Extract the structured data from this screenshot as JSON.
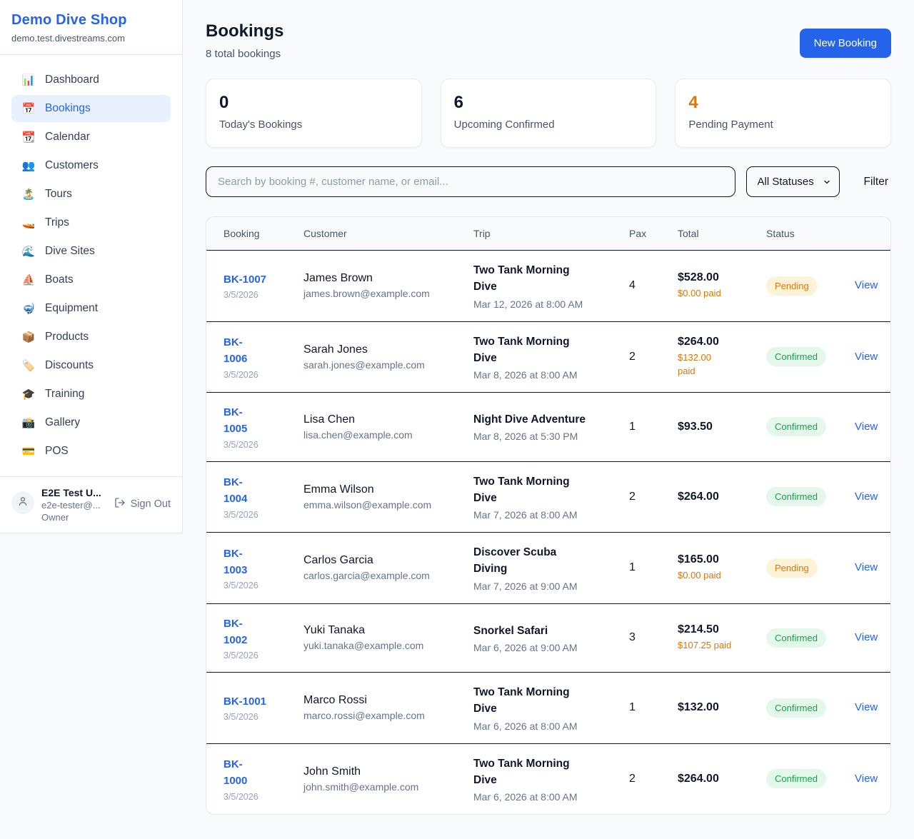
{
  "colors": {
    "accent_blue": "#2563eb",
    "orange": "#d97706",
    "green": "#16a34a",
    "dark": "#0f172a"
  },
  "sidebar": {
    "title": "Demo Dive Shop",
    "domain": "demo.test.divestreams.com",
    "items": [
      {
        "label": "Dashboard",
        "icon": "📊",
        "icon_name": "bar-chart-icon",
        "active": false
      },
      {
        "label": "Bookings",
        "icon": "📅",
        "icon_name": "calendar-icon",
        "active": true
      },
      {
        "label": "Calendar",
        "icon": "📆",
        "icon_name": "calendar-pad-icon",
        "active": false
      },
      {
        "label": "Customers",
        "icon": "👥",
        "icon_name": "people-icon",
        "active": false
      },
      {
        "label": "Tours",
        "icon": "🏝️",
        "icon_name": "island-icon",
        "active": false
      },
      {
        "label": "Trips",
        "icon": "🚤",
        "icon_name": "speedboat-icon",
        "active": false
      },
      {
        "label": "Dive Sites",
        "icon": "🌊",
        "icon_name": "wave-icon",
        "active": false
      },
      {
        "label": "Boats",
        "icon": "⛵",
        "icon_name": "sailboat-icon",
        "active": false
      },
      {
        "label": "Equipment",
        "icon": "🤿",
        "icon_name": "dive-mask-icon",
        "active": false
      },
      {
        "label": "Products",
        "icon": "📦",
        "icon_name": "package-icon",
        "active": false
      },
      {
        "label": "Discounts",
        "icon": "🏷️",
        "icon_name": "tag-icon",
        "active": false
      },
      {
        "label": "Training",
        "icon": "🎓",
        "icon_name": "grad-cap-icon",
        "active": false
      },
      {
        "label": "Gallery",
        "icon": "📸",
        "icon_name": "camera-icon",
        "active": false
      },
      {
        "label": "POS",
        "icon": "💳",
        "icon_name": "credit-card-icon",
        "active": false
      }
    ],
    "user": {
      "name": "E2E Test U...",
      "email": "e2e-tester@...",
      "role": "Owner",
      "signout_label": "Sign Out"
    }
  },
  "header": {
    "title": "Bookings",
    "subtitle": "8 total bookings",
    "new_booking_label": "New Booking"
  },
  "stats": [
    {
      "value": "0",
      "label": "Today's Bookings",
      "color": "#0f172a"
    },
    {
      "value": "6",
      "label": "Upcoming Confirmed",
      "color": "#0f172a"
    },
    {
      "value": "4",
      "label": "Pending Payment",
      "color": "#d97706"
    }
  ],
  "controls": {
    "search_placeholder": "Search by booking #, customer name, or email...",
    "status_selected": "All Statuses",
    "filter_label": "Filter"
  },
  "table": {
    "columns": [
      "Booking",
      "Customer",
      "Trip",
      "Pax",
      "Total",
      "Status",
      ""
    ],
    "view_label": "View",
    "rows": [
      {
        "id": "BK-1007",
        "id_wrap": false,
        "date": "3/5/2026",
        "customer": "James Brown",
        "email": "james.brown@example.com",
        "trip": "Two Tank Morning Dive",
        "trip_time": "Mar 12, 2026 at 8:00 AM",
        "pax": "4",
        "total": "$528.00",
        "paid": "$0.00 paid",
        "paid_wrap": false,
        "status": "Pending"
      },
      {
        "id": "BK-1006",
        "id_wrap": true,
        "date": "3/5/2026",
        "customer": "Sarah Jones",
        "email": "sarah.jones@example.com",
        "trip": "Two Tank Morning Dive",
        "trip_time": "Mar 8, 2026 at 8:00 AM",
        "pax": "2",
        "total": "$264.00",
        "paid": "$132.00 paid",
        "paid_wrap": true,
        "status": "Confirmed"
      },
      {
        "id": "BK-1005",
        "id_wrap": true,
        "date": "3/5/2026",
        "customer": "Lisa Chen",
        "email": "lisa.chen@example.com",
        "trip": "Night Dive Adventure",
        "trip_time": "Mar 8, 2026 at 5:30 PM",
        "pax": "1",
        "total": "$93.50",
        "paid": "",
        "paid_wrap": false,
        "status": "Confirmed"
      },
      {
        "id": "BK-1004",
        "id_wrap": true,
        "date": "3/5/2026",
        "customer": "Emma Wilson",
        "email": "emma.wilson@example.com",
        "trip": "Two Tank Morning Dive",
        "trip_time": "Mar 7, 2026 at 8:00 AM",
        "pax": "2",
        "total": "$264.00",
        "paid": "",
        "paid_wrap": false,
        "status": "Confirmed"
      },
      {
        "id": "BK-1003",
        "id_wrap": true,
        "date": "3/5/2026",
        "customer": "Carlos Garcia",
        "email": "carlos.garcia@example.com",
        "trip": "Discover Scuba Diving",
        "trip_time": "Mar 7, 2026 at 9:00 AM",
        "pax": "1",
        "total": "$165.00",
        "paid": "$0.00 paid",
        "paid_wrap": false,
        "status": "Pending"
      },
      {
        "id": "BK-1002",
        "id_wrap": true,
        "date": "3/5/2026",
        "customer": "Yuki Tanaka",
        "email": "yuki.tanaka@example.com",
        "trip": "Snorkel Safari",
        "trip_time": "Mar 6, 2026 at 9:00 AM",
        "pax": "3",
        "total": "$214.50",
        "paid": "$107.25 paid",
        "paid_wrap": false,
        "status": "Confirmed"
      },
      {
        "id": "BK-1001",
        "id_wrap": false,
        "date": "3/5/2026",
        "customer": "Marco Rossi",
        "email": "marco.rossi@example.com",
        "trip": "Two Tank Morning Dive",
        "trip_time": "Mar 6, 2026 at 8:00 AM",
        "pax": "1",
        "total": "$132.00",
        "paid": "",
        "paid_wrap": false,
        "status": "Confirmed"
      },
      {
        "id": "BK-1000",
        "id_wrap": true,
        "date": "3/5/2026",
        "customer": "John Smith",
        "email": "john.smith@example.com",
        "trip": "Two Tank Morning Dive",
        "trip_time": "Mar 6, 2026 at 8:00 AM",
        "pax": "2",
        "total": "$264.00",
        "paid": "",
        "paid_wrap": false,
        "status": "Confirmed"
      }
    ]
  }
}
